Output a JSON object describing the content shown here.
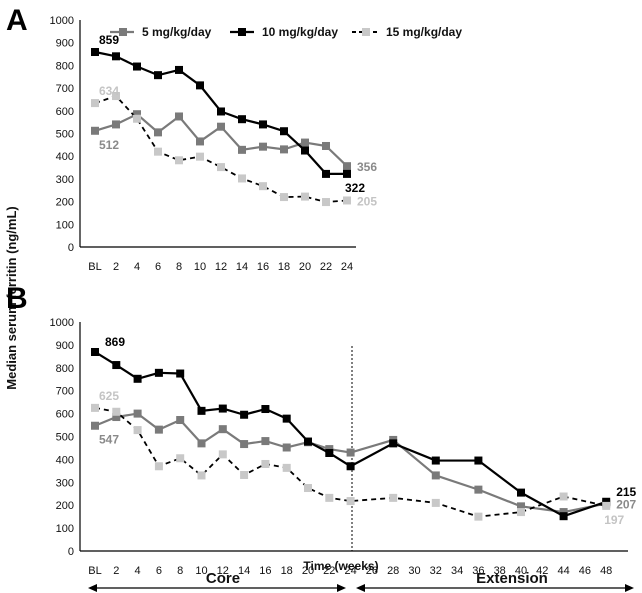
{
  "ylabel": "Median serum ferritin (ng/mL)",
  "chart_data": [
    {
      "panel": "A",
      "type": "line",
      "x_ticks": [
        "BL",
        "2",
        "4",
        "6",
        "8",
        "10",
        "12",
        "14",
        "16",
        "18",
        "20",
        "22",
        "24"
      ],
      "x": [
        0,
        2,
        4,
        6,
        8,
        10,
        12,
        14,
        16,
        18,
        20,
        22,
        24
      ],
      "ylim": [
        0,
        1000
      ],
      "y_ticks": [
        "0",
        "100",
        "200",
        "300",
        "400",
        "500",
        "600",
        "700",
        "800",
        "900",
        "1000"
      ],
      "legend_position": "top",
      "series": [
        {
          "name": "5 mg/kg/day",
          "color": "#7a7a7a",
          "dashed": false,
          "values": [
            512,
            540,
            585,
            505,
            575,
            465,
            530,
            428,
            442,
            430,
            460,
            445,
            356
          ]
        },
        {
          "name": "10 mg/kg/day",
          "color": "#000000",
          "dashed": false,
          "values": [
            859,
            840,
            795,
            757,
            780,
            712,
            597,
            563,
            540,
            510,
            425,
            322,
            322
          ]
        },
        {
          "name": "15 mg/kg/day",
          "color": "#c8c8c8",
          "dashed": true,
          "values": [
            634,
            665,
            565,
            420,
            382,
            398,
            352,
            302,
            268,
            220,
            222,
            198,
            205
          ]
        }
      ],
      "annotations": [
        {
          "text": "859",
          "series": 1,
          "x": 0,
          "y": 859,
          "where": "above"
        },
        {
          "text": "634",
          "series": 2,
          "x": 0,
          "y": 634,
          "where": "above"
        },
        {
          "text": "512",
          "series": 0,
          "x": 0,
          "y": 512,
          "where": "below"
        },
        {
          "text": "356",
          "series": 0,
          "x": 24,
          "y": 356,
          "where": "right"
        },
        {
          "text": "322",
          "series": 1,
          "x": 24,
          "y": 322,
          "where": "below-right"
        },
        {
          "text": "205",
          "series": 2,
          "x": 24,
          "y": 205,
          "where": "right"
        }
      ]
    },
    {
      "panel": "B",
      "type": "line",
      "x_ticks": [
        "BL",
        "2",
        "4",
        "6",
        "8",
        "10",
        "12",
        "14",
        "16",
        "18",
        "20",
        "22",
        "24",
        "26",
        "28",
        "30",
        "32",
        "34",
        "36",
        "38",
        "40",
        "42",
        "44",
        "46",
        "48"
      ],
      "xlabel": "Time (weeks)",
      "ylim": [
        0,
        1000
      ],
      "y_ticks": [
        "0",
        "100",
        "200",
        "300",
        "400",
        "500",
        "600",
        "700",
        "800",
        "900",
        "1000"
      ],
      "divider_x": 24,
      "phases": [
        {
          "label": "Core",
          "from": 0,
          "to": 24
        },
        {
          "label": "Extension",
          "from": 24,
          "to": 48
        }
      ],
      "series": [
        {
          "name": "5 mg/kg/day",
          "color": "#7a7a7a",
          "dashed": false,
          "x": [
            0,
            2,
            4,
            6,
            8,
            10,
            12,
            14,
            16,
            18,
            20,
            22,
            24,
            28,
            32,
            36,
            40,
            44,
            48
          ],
          "values": [
            547,
            585,
            600,
            530,
            572,
            470,
            532,
            467,
            480,
            452,
            475,
            445,
            430,
            485,
            330,
            268,
            195,
            170,
            207
          ]
        },
        {
          "name": "10 mg/kg/day",
          "color": "#000000",
          "dashed": false,
          "x": [
            0,
            2,
            4,
            6,
            8,
            10,
            12,
            14,
            16,
            18,
            20,
            22,
            24,
            28,
            32,
            36,
            40,
            44,
            48
          ],
          "values": [
            869,
            812,
            752,
            778,
            775,
            612,
            622,
            595,
            620,
            578,
            478,
            428,
            370,
            470,
            395,
            395,
            255,
            152,
            215
          ]
        },
        {
          "name": "15 mg/kg/day",
          "color": "#c8c8c8",
          "dashed": true,
          "x": [
            0,
            2,
            4,
            6,
            8,
            10,
            12,
            14,
            16,
            18,
            20,
            22,
            24,
            28,
            32,
            36,
            40,
            44,
            48
          ],
          "values": [
            625,
            608,
            528,
            370,
            405,
            330,
            422,
            332,
            380,
            363,
            275,
            232,
            218,
            232,
            210,
            150,
            170,
            238,
            197
          ]
        }
      ],
      "annotations": [
        {
          "text": "869",
          "series": 1,
          "x": 0,
          "y": 869,
          "where": "above-right"
        },
        {
          "text": "625",
          "series": 2,
          "x": 0,
          "y": 625,
          "where": "above"
        },
        {
          "text": "547",
          "series": 0,
          "x": 0,
          "y": 547,
          "where": "below"
        },
        {
          "text": "215",
          "series": 1,
          "x": 48,
          "y": 215,
          "where": "above-right"
        },
        {
          "text": "207",
          "series": 0,
          "x": 48,
          "y": 207,
          "where": "right"
        },
        {
          "text": "197",
          "series": 2,
          "x": 48,
          "y": 197,
          "where": "below-right"
        }
      ]
    }
  ]
}
